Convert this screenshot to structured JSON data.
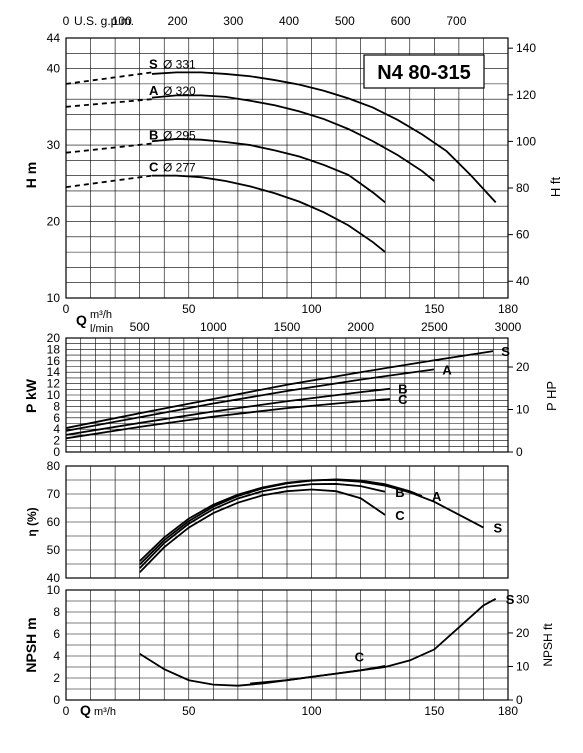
{
  "chart_data": [
    {
      "type": "line",
      "name": "head",
      "title": "N4 80-315",
      "xlabel_top": "U.S. g.p.m.",
      "xlabel_bottom": "Q m³/h",
      "ylabel": "H m",
      "ylabel_right": "H ft",
      "xlim": [
        0,
        180
      ],
      "ylim": [
        10,
        44
      ],
      "x_ticks_bottom": [
        0,
        50,
        100,
        150,
        180
      ],
      "x_ticks_top": [
        0,
        100,
        200,
        300,
        400,
        500,
        600,
        700
      ],
      "y_ticks": [
        10,
        20,
        30,
        40,
        44
      ],
      "y_ticks_right": [
        40,
        60,
        80,
        100,
        120,
        140
      ],
      "series": [
        {
          "name": "S",
          "label": "Ø 331",
          "dashed_x": [
            0,
            35
          ],
          "dashed_y": [
            38.0,
            39.5
          ],
          "x": [
            35,
            45,
            55,
            65,
            75,
            85,
            95,
            105,
            115,
            125,
            135,
            145,
            155,
            165,
            175
          ],
          "y": [
            39.3,
            39.5,
            39.5,
            39.3,
            39.0,
            38.5,
            37.9,
            37.1,
            36.1,
            34.9,
            33.3,
            31.4,
            29.2,
            26.0,
            22.5
          ]
        },
        {
          "name": "A",
          "label": "Ø 320",
          "dashed_x": [
            0,
            35
          ],
          "dashed_y": [
            35.0,
            36.0
          ],
          "x": [
            35,
            45,
            55,
            65,
            75,
            85,
            95,
            105,
            115,
            125,
            135,
            145,
            150
          ],
          "y": [
            36.2,
            36.5,
            36.5,
            36.3,
            35.8,
            35.2,
            34.4,
            33.4,
            32.1,
            30.5,
            28.7,
            26.6,
            25.3
          ]
        },
        {
          "name": "B",
          "label": "Ø 295",
          "dashed_x": [
            0,
            35
          ],
          "dashed_y": [
            29.0,
            30.2
          ],
          "x": [
            35,
            45,
            55,
            65,
            75,
            85,
            95,
            105,
            115,
            125,
            130
          ],
          "y": [
            30.5,
            30.8,
            30.7,
            30.4,
            30.0,
            29.3,
            28.5,
            27.4,
            26.1,
            23.8,
            22.5
          ]
        },
        {
          "name": "C",
          "label": "Ø 277",
          "dashed_x": [
            0,
            35
          ],
          "dashed_y": [
            24.5,
            26.0
          ],
          "x": [
            35,
            45,
            55,
            65,
            75,
            85,
            95,
            105,
            115,
            125,
            130
          ],
          "y": [
            26.0,
            26.0,
            25.8,
            25.3,
            24.6,
            23.7,
            22.6,
            21.2,
            19.5,
            17.3,
            16.0
          ]
        }
      ]
    },
    {
      "type": "line",
      "name": "power",
      "xlabel": "l/min",
      "ylabel": "P kW",
      "ylabel_right": "P HP",
      "xlim": [
        0,
        3000
      ],
      "ylim": [
        0,
        20
      ],
      "x_ticks": [
        500,
        1000,
        1500,
        2000,
        2500,
        3000
      ],
      "y_ticks": [
        0,
        2,
        4,
        6,
        8,
        10,
        12,
        14,
        16,
        18,
        20
      ],
      "y_ticks_right": [
        0,
        10,
        20
      ],
      "series": [
        {
          "name": "S",
          "x": [
            0,
            500,
            1000,
            1500,
            2000,
            2500,
            2900
          ],
          "y": [
            4.2,
            6.8,
            9.3,
            11.8,
            14.0,
            16.1,
            17.7
          ]
        },
        {
          "name": "A",
          "x": [
            0,
            500,
            1000,
            1500,
            2000,
            2500
          ],
          "y": [
            3.7,
            6.1,
            8.5,
            10.7,
            12.7,
            14.5
          ]
        },
        {
          "name": "B",
          "x": [
            0,
            500,
            1000,
            1500,
            2000,
            2200
          ],
          "y": [
            3.0,
            5.1,
            7.1,
            8.9,
            10.5,
            11.1
          ]
        },
        {
          "name": "C",
          "x": [
            0,
            500,
            1000,
            1500,
            2000,
            2200
          ],
          "y": [
            2.4,
            4.4,
            6.2,
            7.7,
            8.9,
            9.3
          ]
        }
      ]
    },
    {
      "type": "line",
      "name": "efficiency",
      "ylabel": "η (%)",
      "xlim": [
        0,
        180
      ],
      "ylim": [
        40,
        80
      ],
      "y_ticks": [
        40,
        50,
        60,
        70,
        80
      ],
      "series": [
        {
          "name": "S",
          "x": [
            30,
            40,
            50,
            60,
            70,
            80,
            90,
            100,
            110,
            120,
            130,
            140,
            150,
            160,
            170
          ],
          "y": [
            46.0,
            54.5,
            61.2,
            66.2,
            69.8,
            72.3,
            74.0,
            74.9,
            75.0,
            74.4,
            73.0,
            70.6,
            67.2,
            62.6,
            58.0
          ]
        },
        {
          "name": "A",
          "x": [
            30,
            40,
            50,
            60,
            70,
            80,
            90,
            100,
            110,
            120,
            130,
            140,
            145
          ],
          "y": [
            44.8,
            53.5,
            60.3,
            65.5,
            69.3,
            72.0,
            73.8,
            74.8,
            75.2,
            74.8,
            73.5,
            71.0,
            69.2
          ]
        },
        {
          "name": "B",
          "x": [
            30,
            40,
            50,
            60,
            70,
            80,
            90,
            100,
            110,
            120,
            130
          ],
          "y": [
            43.5,
            52.5,
            59.4,
            64.6,
            68.4,
            71.0,
            72.6,
            73.5,
            73.6,
            72.8,
            70.8
          ]
        },
        {
          "name": "C",
          "x": [
            30,
            40,
            50,
            60,
            70,
            80,
            90,
            100,
            110,
            120,
            130
          ],
          "y": [
            42.0,
            51.0,
            58.0,
            63.2,
            66.9,
            69.5,
            71.0,
            71.6,
            71.0,
            68.5,
            62.5
          ]
        }
      ]
    },
    {
      "type": "line",
      "name": "npsh",
      "xlabel": "Q m³/h",
      "ylabel": "NPSH m",
      "ylabel_right": "NPSH ft",
      "xlim": [
        0,
        180
      ],
      "ylim": [
        0,
        10
      ],
      "x_ticks": [
        0,
        50,
        100,
        150,
        180
      ],
      "y_ticks": [
        0,
        2,
        4,
        6,
        8,
        10
      ],
      "y_ticks_right": [
        0,
        10,
        20,
        30
      ],
      "series": [
        {
          "name": "S",
          "x": [
            30,
            40,
            50,
            60,
            70,
            80,
            90,
            100,
            110,
            120,
            130,
            140,
            150,
            160,
            170,
            175
          ],
          "y": [
            4.2,
            2.8,
            1.8,
            1.4,
            1.3,
            1.5,
            1.8,
            2.1,
            2.4,
            2.7,
            3.0,
            3.6,
            4.6,
            6.6,
            8.6,
            9.2
          ]
        },
        {
          "name": "C",
          "x": [
            75,
            90,
            100,
            110,
            120,
            130
          ],
          "y": [
            1.5,
            1.8,
            2.1,
            2.4,
            2.7,
            3.1
          ]
        }
      ]
    }
  ]
}
